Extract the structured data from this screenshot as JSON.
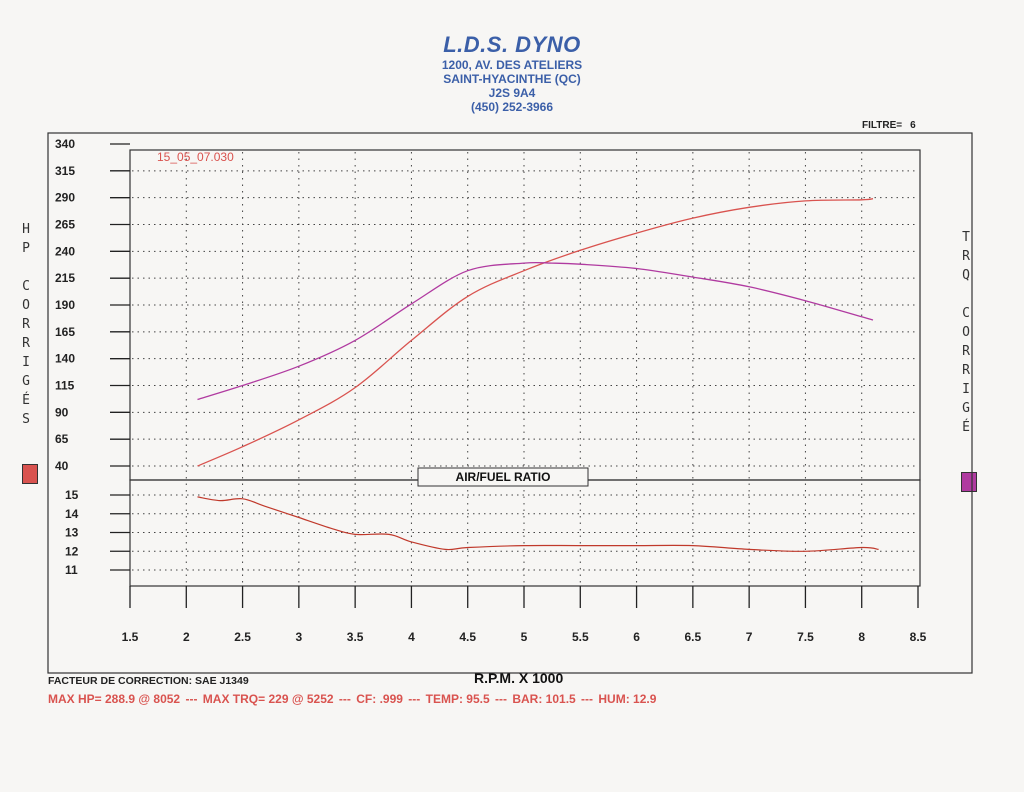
{
  "header": {
    "title": "L.D.S. DYNO",
    "address1": "1200, AV. DES ATELIERS",
    "address2": "SAINT-HYACINTHE (QC)",
    "postal": "J2S 9A4",
    "phone": "(450) 252-3966"
  },
  "filter": {
    "label": "FILTRE=",
    "value": "6"
  },
  "left_axis_label": [
    "H",
    "P",
    "",
    "C",
    "O",
    "R",
    "R",
    "I",
    "G",
    "É",
    "S"
  ],
  "right_axis_label": [
    "T",
    "R",
    "Q",
    "",
    "C",
    "O",
    "R",
    "R",
    "I",
    "G",
    "É"
  ],
  "colors": {
    "hp": "#d9534f",
    "tq": "#b03aa0",
    "afr": "#c0392b",
    "header": "#3b5fa8",
    "summary": "#d9534f"
  },
  "correction": "FACTEUR DE CORRECTION: SAE J1349",
  "summary": {
    "max_hp": "MAX HP= 288.9 @ 8052",
    "max_trq": "MAX TRQ= 229 @ 5252",
    "cf": "CF: .999",
    "temp": "TEMP: 95.5",
    "bar": "BAR: 101.5",
    "hum": "HUM: 12.9",
    "sep": "---"
  },
  "chart_data": [
    {
      "type": "line",
      "title": "",
      "run_label": "15_05_07.030",
      "xlabel": "R.P.M. X 1000",
      "x_ticks": [
        "1.5",
        "2",
        "2.5",
        "3",
        "3.5",
        "4",
        "4.5",
        "5",
        "5.5",
        "6",
        "6.5",
        "7",
        "7.5",
        "8",
        "8.5"
      ],
      "xlim": [
        1.5,
        8.5
      ],
      "ylim": [
        40,
        340
      ],
      "y_ticks": [
        "340",
        "315",
        "290",
        "265",
        "240",
        "215",
        "190",
        "165",
        "140",
        "115",
        "90",
        "65",
        "40"
      ],
      "grid": true,
      "series": [
        {
          "name": "HP CORRIGÉS",
          "x": [
            2.1,
            2.5,
            3.0,
            3.5,
            4.0,
            4.5,
            5.0,
            5.5,
            6.0,
            6.5,
            7.0,
            7.5,
            8.0,
            8.1
          ],
          "y": [
            40,
            58,
            83,
            113,
            157,
            198,
            222,
            241,
            257,
            271,
            281,
            287,
            288,
            289
          ]
        },
        {
          "name": "TRQ CORRIGÉ",
          "x": [
            2.1,
            2.5,
            3.0,
            3.5,
            4.0,
            4.5,
            5.0,
            5.25,
            5.5,
            6.0,
            6.5,
            7.0,
            7.5,
            8.0,
            8.1
          ],
          "y": [
            102,
            115,
            133,
            157,
            191,
            222,
            229,
            229,
            228,
            224,
            216,
            207,
            194,
            179,
            176
          ]
        }
      ]
    },
    {
      "type": "line",
      "title": "AIR/FUEL RATIO",
      "xlim": [
        1.5,
        8.5
      ],
      "ylim": [
        10,
        16
      ],
      "y_ticks": [
        "15",
        "14",
        "13",
        "12",
        "11"
      ],
      "grid": true,
      "series": [
        {
          "name": "AIR/FUEL RATIO",
          "x": [
            2.1,
            2.3,
            2.5,
            2.7,
            3.0,
            3.3,
            3.5,
            3.8,
            4.0,
            4.3,
            4.5,
            5.0,
            5.5,
            6.0,
            6.5,
            7.0,
            7.5,
            8.0,
            8.15
          ],
          "y": [
            14.9,
            14.7,
            14.8,
            14.4,
            13.8,
            13.2,
            12.9,
            12.9,
            12.5,
            12.1,
            12.2,
            12.3,
            12.3,
            12.3,
            12.3,
            12.1,
            12.0,
            12.2,
            12.1
          ]
        }
      ]
    }
  ]
}
